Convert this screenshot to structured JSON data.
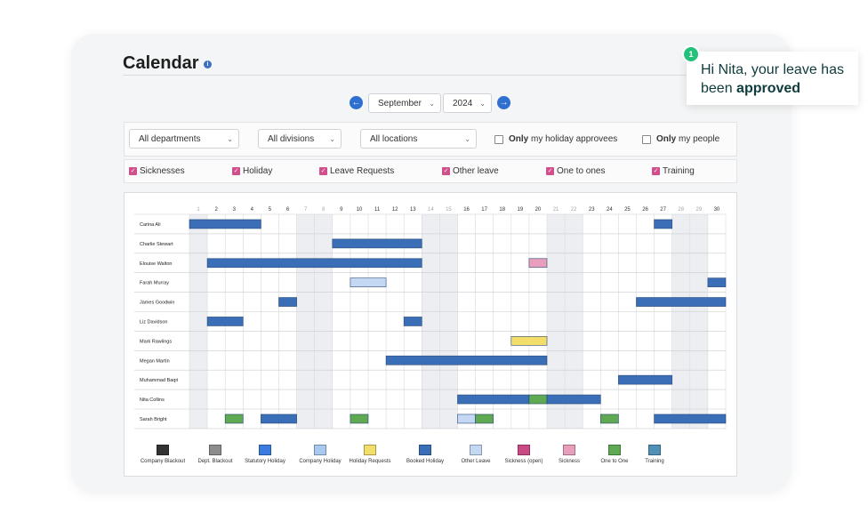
{
  "page": {
    "title": "Calendar"
  },
  "nav": {
    "month": "September",
    "year": "2024"
  },
  "filters": {
    "department": "All departments",
    "division": "All divisions",
    "location": "All locations",
    "only_approvees_bold": "Only",
    "only_approvees_rest": "my holiday approvees",
    "only_people_bold": "Only",
    "only_people_rest": "my people"
  },
  "categories": [
    "Sicknesses",
    "Holiday",
    "Leave Requests",
    "Other leave",
    "One to ones",
    "Training"
  ],
  "calendar": {
    "days": [
      1,
      2,
      3,
      4,
      5,
      6,
      7,
      8,
      9,
      10,
      11,
      12,
      13,
      14,
      15,
      16,
      17,
      18,
      19,
      20,
      21,
      22,
      23,
      24,
      25,
      26,
      27,
      28,
      29,
      30
    ],
    "weekend_days": [
      1,
      7,
      8,
      14,
      15,
      21,
      22,
      28,
      29
    ],
    "people": [
      {
        "name": "Carina Ali",
        "bars": [
          {
            "start": 1,
            "end": 4,
            "type": "booked"
          },
          {
            "start": 27,
            "end": 27,
            "type": "booked"
          }
        ]
      },
      {
        "name": "Charlie Stewart",
        "bars": [
          {
            "start": 9,
            "end": 13,
            "type": "booked"
          }
        ]
      },
      {
        "name": "Elouise Walton",
        "bars": [
          {
            "start": 2,
            "end": 13,
            "type": "booked"
          },
          {
            "start": 20,
            "end": 20,
            "type": "sickness"
          }
        ]
      },
      {
        "name": "Farah Murray",
        "bars": [
          {
            "start": 10,
            "end": 11,
            "type": "other"
          },
          {
            "start": 30,
            "end": 30,
            "type": "booked"
          }
        ]
      },
      {
        "name": "James Goodwin",
        "bars": [
          {
            "start": 6,
            "end": 6,
            "type": "booked"
          },
          {
            "start": 26,
            "end": 30,
            "type": "booked"
          }
        ]
      },
      {
        "name": "Liz Davidson",
        "bars": [
          {
            "start": 2,
            "end": 3,
            "type": "booked"
          },
          {
            "start": 13,
            "end": 13,
            "type": "booked"
          }
        ]
      },
      {
        "name": "Mark Rawlings",
        "bars": [
          {
            "start": 19,
            "end": 20,
            "type": "request"
          }
        ]
      },
      {
        "name": "Megan Martin",
        "bars": [
          {
            "start": 12,
            "end": 20,
            "type": "booked"
          }
        ]
      },
      {
        "name": "Muhammad Baqri",
        "bars": [
          {
            "start": 25,
            "end": 27,
            "type": "booked"
          }
        ]
      },
      {
        "name": "Nita Collins",
        "bars": [
          {
            "start": 16,
            "end": 19,
            "type": "booked"
          },
          {
            "start": 20,
            "end": 20,
            "type": "onetoone"
          },
          {
            "start": 21,
            "end": 23,
            "type": "booked"
          }
        ]
      },
      {
        "name": "Sarah Bright",
        "bars": [
          {
            "start": 3,
            "end": 3,
            "type": "onetoone"
          },
          {
            "start": 5,
            "end": 6,
            "type": "booked"
          },
          {
            "start": 10,
            "end": 10,
            "type": "onetoone"
          },
          {
            "start": 16,
            "end": 16,
            "type": "other"
          },
          {
            "start": 17,
            "end": 17,
            "type": "onetoone"
          },
          {
            "start": 24,
            "end": 24,
            "type": "onetoone"
          },
          {
            "start": 27,
            "end": 30,
            "type": "booked"
          }
        ]
      }
    ]
  },
  "legend": [
    {
      "label": "Company Blackout",
      "color": "#333333"
    },
    {
      "label": "Dept. Blackout",
      "color": "#8c8c8c"
    },
    {
      "label": "Statutory Holiday",
      "color": "#3a7be0"
    },
    {
      "label": "Company Holiday",
      "color": "#a9c9f0"
    },
    {
      "label": "Holiday Requests",
      "color": "#f4de6b"
    },
    {
      "label": "Booked Holiday",
      "color": "#3a6fb8"
    },
    {
      "label": "Other Leave",
      "color": "#c4d8f3"
    },
    {
      "label": "Sickness (open)",
      "color": "#c94a85"
    },
    {
      "label": "Sickness",
      "color": "#e89fbc"
    },
    {
      "label": "One to One",
      "color": "#5ea952"
    },
    {
      "label": "Training",
      "color": "#4f8fb8"
    }
  ],
  "bar_colors": {
    "booked": "#3a6fb8",
    "other": "#c4d8f3",
    "sickness": "#e89fbc",
    "request": "#f4de6b",
    "onetoone": "#5ea952"
  },
  "toast": {
    "badge": "1",
    "text_before": "Hi Nita, your leave has been ",
    "text_bold": "approved"
  }
}
